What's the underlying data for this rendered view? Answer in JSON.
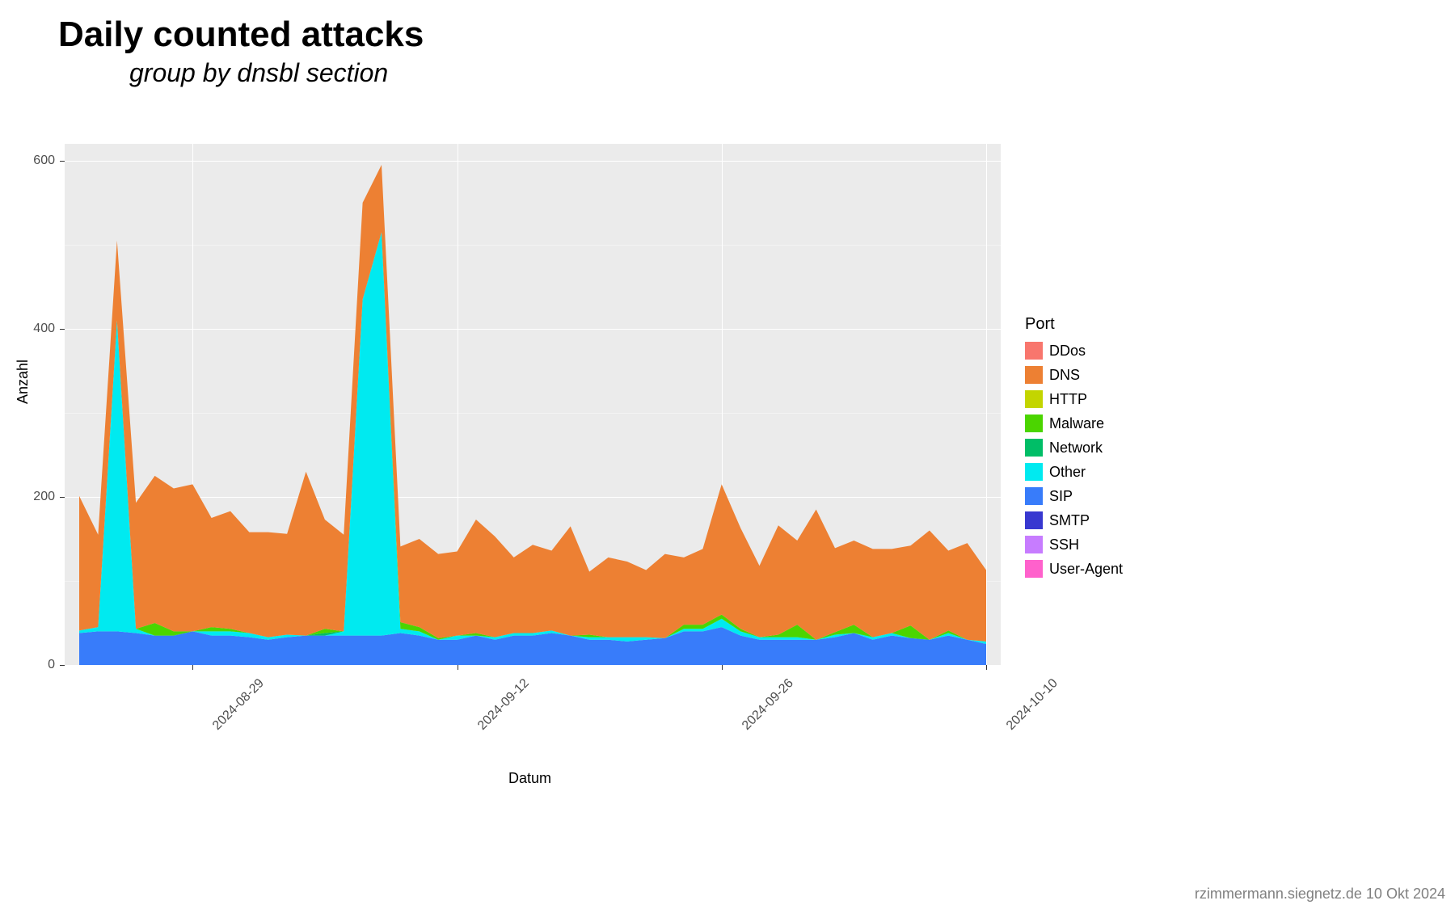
{
  "title": "Daily counted attacks",
  "subtitle": "group by dnsbl section",
  "caption": "rzimmermann.siegnetz.de 10 Okt 2024",
  "chart": {
    "type": "stacked-area",
    "background_color": "#ebebeb",
    "grid_color": "#ffffff",
    "x_label": "Datum",
    "y_label": "Anzahl",
    "ylim": [
      0,
      620
    ],
    "y_ticks": [
      0,
      200,
      400,
      600
    ],
    "y_minor_ticks": [
      100,
      300,
      500
    ],
    "x_ticks": [
      "2024-08-29",
      "2024-09-12",
      "2024-09-26",
      "2024-10-10"
    ],
    "x_tick_positions": [
      6,
      20,
      34,
      48
    ],
    "tick_fontsize": 16,
    "label_fontsize": 18,
    "title_fontsize": 44,
    "subtitle_fontsize": 32,
    "x_count": 49,
    "legend_title": "Port",
    "series": [
      {
        "name": "DDos",
        "color": "#f8766d",
        "values": [
          0,
          0,
          0,
          0,
          0,
          0,
          0,
          0,
          0,
          0,
          0,
          0,
          0,
          0,
          0,
          0,
          0,
          0,
          0,
          0,
          0,
          0,
          0,
          0,
          0,
          0,
          0,
          0,
          0,
          0,
          0,
          0,
          0,
          0,
          0,
          0,
          0,
          0,
          0,
          0,
          0,
          0,
          0,
          0,
          0,
          0,
          0,
          0,
          0
        ]
      },
      {
        "name": "DNS",
        "color": "#ed8033",
        "values": [
          160,
          110,
          95,
          150,
          175,
          170,
          175,
          130,
          140,
          120,
          125,
          120,
          195,
          130,
          115,
          115,
          80,
          90,
          105,
          100,
          100,
          135,
          120,
          90,
          105,
          95,
          130,
          75,
          95,
          90,
          80,
          100,
          80,
          90,
          155,
          120,
          85,
          130,
          100,
          155,
          100,
          100,
          105,
          100,
          95,
          130,
          95,
          115,
          85
        ]
      },
      {
        "name": "HTTP",
        "color": "#c3d500",
        "values": [
          0,
          0,
          0,
          0,
          0,
          0,
          0,
          0,
          0,
          0,
          0,
          0,
          0,
          0,
          0,
          0,
          0,
          0,
          0,
          0,
          0,
          0,
          0,
          0,
          0,
          0,
          0,
          0,
          0,
          0,
          0,
          0,
          0,
          0,
          0,
          0,
          0,
          0,
          0,
          0,
          0,
          0,
          0,
          0,
          0,
          0,
          0,
          0,
          0
        ]
      },
      {
        "name": "Malware",
        "color": "#4bd500",
        "values": [
          0,
          0,
          0,
          0,
          15,
          5,
          0,
          5,
          3,
          0,
          0,
          0,
          0,
          5,
          0,
          0,
          0,
          8,
          5,
          2,
          0,
          3,
          0,
          0,
          0,
          0,
          0,
          3,
          0,
          0,
          0,
          0,
          5,
          5,
          5,
          3,
          0,
          3,
          15,
          0,
          3,
          10,
          0,
          0,
          15,
          0,
          3,
          0,
          0
        ]
      },
      {
        "name": "Network",
        "color": "#00be67",
        "values": [
          0,
          0,
          0,
          0,
          0,
          0,
          0,
          0,
          0,
          0,
          0,
          0,
          0,
          3,
          0,
          0,
          0,
          0,
          0,
          0,
          0,
          0,
          0,
          0,
          0,
          0,
          0,
          0,
          0,
          0,
          0,
          0,
          0,
          0,
          0,
          0,
          0,
          0,
          0,
          0,
          0,
          0,
          0,
          0,
          0,
          0,
          0,
          0,
          0
        ]
      },
      {
        "name": "Other",
        "color": "#00eaf0",
        "values": [
          3,
          5,
          370,
          5,
          0,
          0,
          0,
          5,
          5,
          5,
          3,
          3,
          0,
          0,
          5,
          400,
          480,
          5,
          5,
          0,
          5,
          0,
          3,
          3,
          3,
          3,
          0,
          3,
          3,
          5,
          3,
          0,
          3,
          3,
          10,
          5,
          3,
          3,
          3,
          0,
          3,
          0,
          3,
          3,
          0,
          0,
          3,
          0,
          3
        ]
      },
      {
        "name": "SIP",
        "color": "#387cfa",
        "values": [
          38,
          40,
          40,
          38,
          35,
          35,
          40,
          35,
          35,
          33,
          30,
          33,
          35,
          35,
          35,
          35,
          35,
          38,
          35,
          30,
          30,
          35,
          30,
          35,
          35,
          38,
          35,
          30,
          30,
          28,
          30,
          32,
          40,
          40,
          45,
          35,
          30,
          30,
          30,
          30,
          33,
          38,
          30,
          35,
          32,
          30,
          35,
          30,
          25
        ]
      },
      {
        "name": "SMTP",
        "color": "#3838d0",
        "values": [
          0,
          0,
          0,
          0,
          0,
          0,
          0,
          0,
          0,
          0,
          0,
          0,
          0,
          0,
          0,
          0,
          0,
          0,
          0,
          0,
          0,
          0,
          0,
          0,
          0,
          0,
          0,
          0,
          0,
          0,
          0,
          0,
          0,
          0,
          0,
          0,
          0,
          0,
          0,
          0,
          0,
          0,
          0,
          0,
          0,
          0,
          0,
          0,
          0
        ]
      },
      {
        "name": "SSH",
        "color": "#c77cff",
        "values": [
          0,
          0,
          0,
          0,
          0,
          0,
          0,
          0,
          0,
          0,
          0,
          0,
          0,
          0,
          0,
          0,
          0,
          0,
          0,
          0,
          0,
          0,
          0,
          0,
          0,
          0,
          0,
          0,
          0,
          0,
          0,
          0,
          0,
          0,
          0,
          0,
          0,
          0,
          0,
          0,
          0,
          0,
          0,
          0,
          0,
          0,
          0,
          0,
          0
        ]
      },
      {
        "name": "User-Agent",
        "color": "#ff61cc",
        "values": [
          0,
          0,
          0,
          0,
          0,
          0,
          0,
          0,
          0,
          0,
          0,
          0,
          0,
          0,
          0,
          0,
          0,
          0,
          0,
          0,
          0,
          0,
          0,
          0,
          0,
          0,
          0,
          0,
          0,
          0,
          0,
          0,
          0,
          0,
          0,
          0,
          0,
          0,
          0,
          0,
          0,
          0,
          0,
          0,
          0,
          0,
          0,
          0,
          0
        ]
      }
    ]
  }
}
